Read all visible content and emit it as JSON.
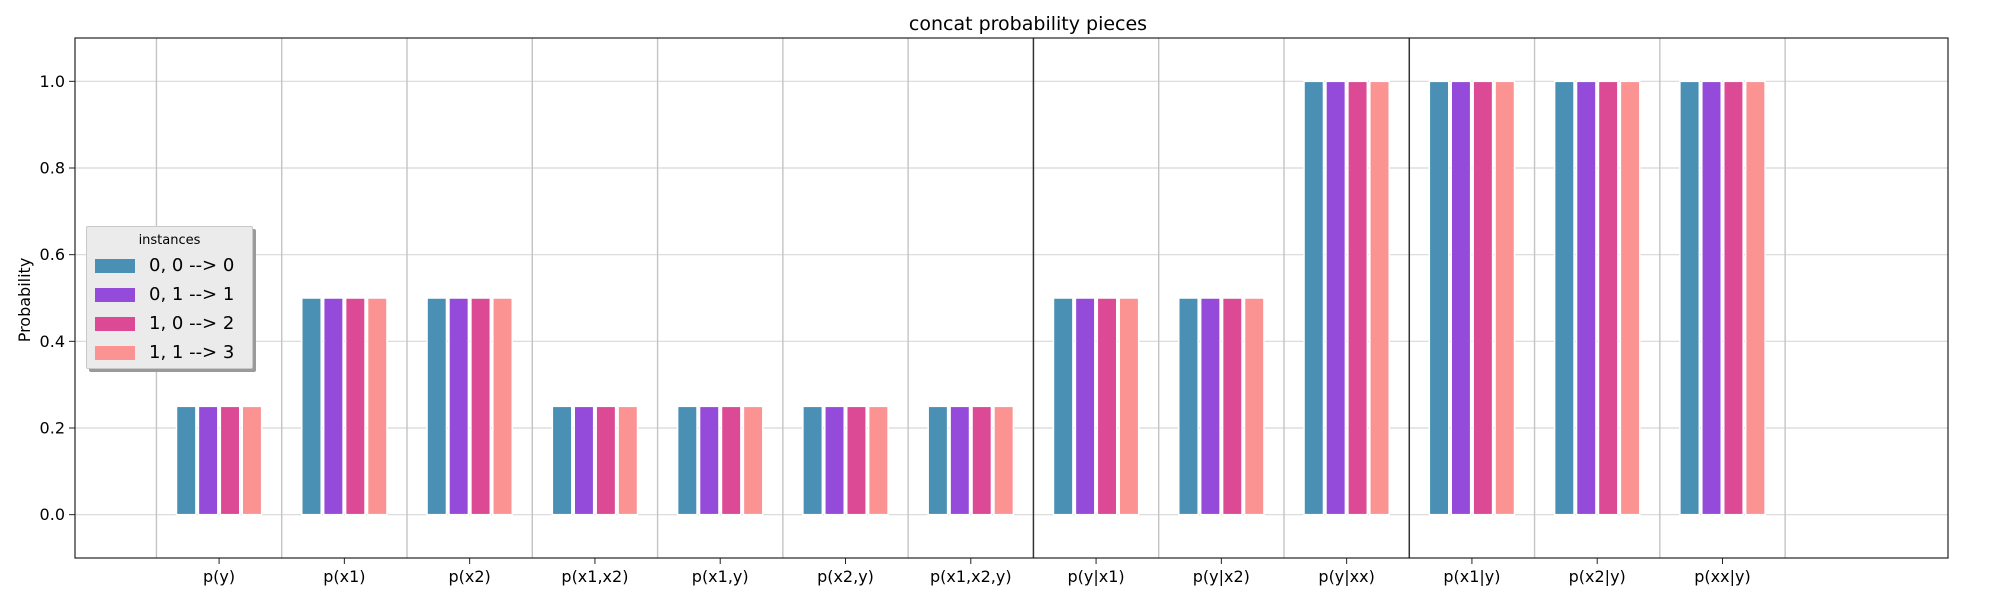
{
  "chart_data": {
    "type": "bar",
    "title": "concat probability pieces",
    "xlabel": "",
    "ylabel": "Probability",
    "ylim": [
      -0.1,
      1.1
    ],
    "yticks": [
      0.0,
      0.2,
      0.4,
      0.6,
      0.8,
      1.0
    ],
    "ytick_labels": [
      "0.0",
      "0.2",
      "0.4",
      "0.6",
      "0.8",
      "1.0"
    ],
    "grid": true,
    "legend": {
      "title": "instances",
      "placement": "center-left"
    },
    "categories": [
      "p(y)",
      "p(x1)",
      "p(x2)",
      "p(x1,x2)",
      "p(x1,y)",
      "p(x2,y)",
      "p(x1,x2,y)",
      "p(y|x1)",
      "p(y|x2)",
      "p(y|xx)",
      "p(x1|y)",
      "p(x2|y)",
      "p(xx|y)"
    ],
    "group_separators_after": [
      6,
      9
    ],
    "series": [
      {
        "name": "0, 0 --> 0",
        "color": "#4a90b4",
        "values": [
          0.25,
          0.5,
          0.5,
          0.25,
          0.25,
          0.25,
          0.25,
          0.5,
          0.5,
          1.0,
          1.0,
          1.0,
          1.0
        ]
      },
      {
        "name": "0, 1 --> 1",
        "color": "#944bd9",
        "values": [
          0.25,
          0.5,
          0.5,
          0.25,
          0.25,
          0.25,
          0.25,
          0.5,
          0.5,
          1.0,
          1.0,
          1.0,
          1.0
        ]
      },
      {
        "name": "1, 0 --> 2",
        "color": "#dc4a96",
        "values": [
          0.25,
          0.5,
          0.5,
          0.25,
          0.25,
          0.25,
          0.25,
          0.5,
          0.5,
          1.0,
          1.0,
          1.0,
          1.0
        ]
      },
      {
        "name": "1, 1 --> 3",
        "color": "#fc9393",
        "values": [
          0.25,
          0.5,
          0.5,
          0.25,
          0.25,
          0.25,
          0.25,
          0.5,
          0.5,
          1.0,
          1.0,
          1.0,
          1.0
        ]
      }
    ]
  }
}
